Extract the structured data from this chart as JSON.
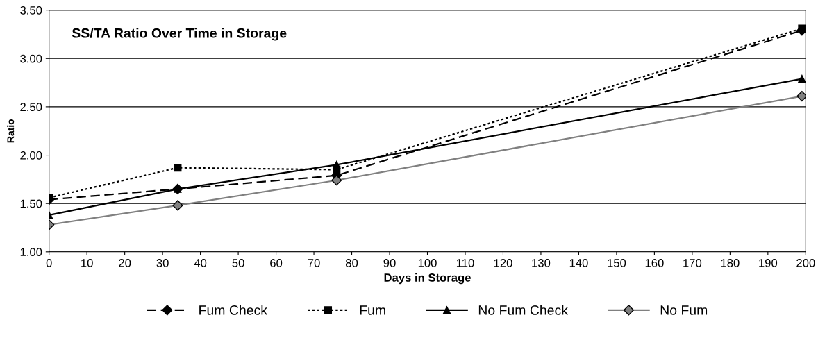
{
  "chart_data": {
    "type": "line",
    "title": "SS/TA Ratio Over Time in Storage",
    "xlabel": "Days in Storage",
    "ylabel": "Ratio",
    "x": [
      0,
      34,
      76,
      199
    ],
    "series": [
      {
        "name": "Fum Check",
        "color": "#000000",
        "marker": "diamond",
        "line_style": "dashed",
        "values": [
          1.54,
          1.65,
          1.79,
          3.29
        ]
      },
      {
        "name": "Fum",
        "color": "#000000",
        "marker": "square",
        "line_style": "dotted",
        "values": [
          1.56,
          1.87,
          1.85,
          3.31
        ]
      },
      {
        "name": "No Fum Check",
        "color": "#000000",
        "marker": "triangle",
        "line_style": "solid",
        "values": [
          1.38,
          1.65,
          1.9,
          2.79
        ]
      },
      {
        "name": "No Fum",
        "color": "#808080",
        "marker": "diamond",
        "line_style": "solid",
        "values": [
          1.28,
          1.48,
          1.74,
          2.61
        ]
      }
    ],
    "xlim": [
      0,
      200
    ],
    "xticks": [
      0,
      10,
      20,
      30,
      40,
      50,
      60,
      70,
      80,
      90,
      100,
      110,
      120,
      130,
      140,
      150,
      160,
      170,
      180,
      190,
      200
    ],
    "ylim": [
      1.0,
      3.5
    ],
    "yticks": [
      {
        "value": 1.0,
        "label": "1.00"
      },
      {
        "value": 1.5,
        "label": "1.50"
      },
      {
        "value": 2.0,
        "label": "2.00"
      },
      {
        "value": 2.5,
        "label": "2.50"
      },
      {
        "value": 3.0,
        "label": "3.00"
      },
      {
        "value": 3.5,
        "label": "3.50"
      }
    ],
    "grid": "y",
    "legend": "bottom"
  }
}
